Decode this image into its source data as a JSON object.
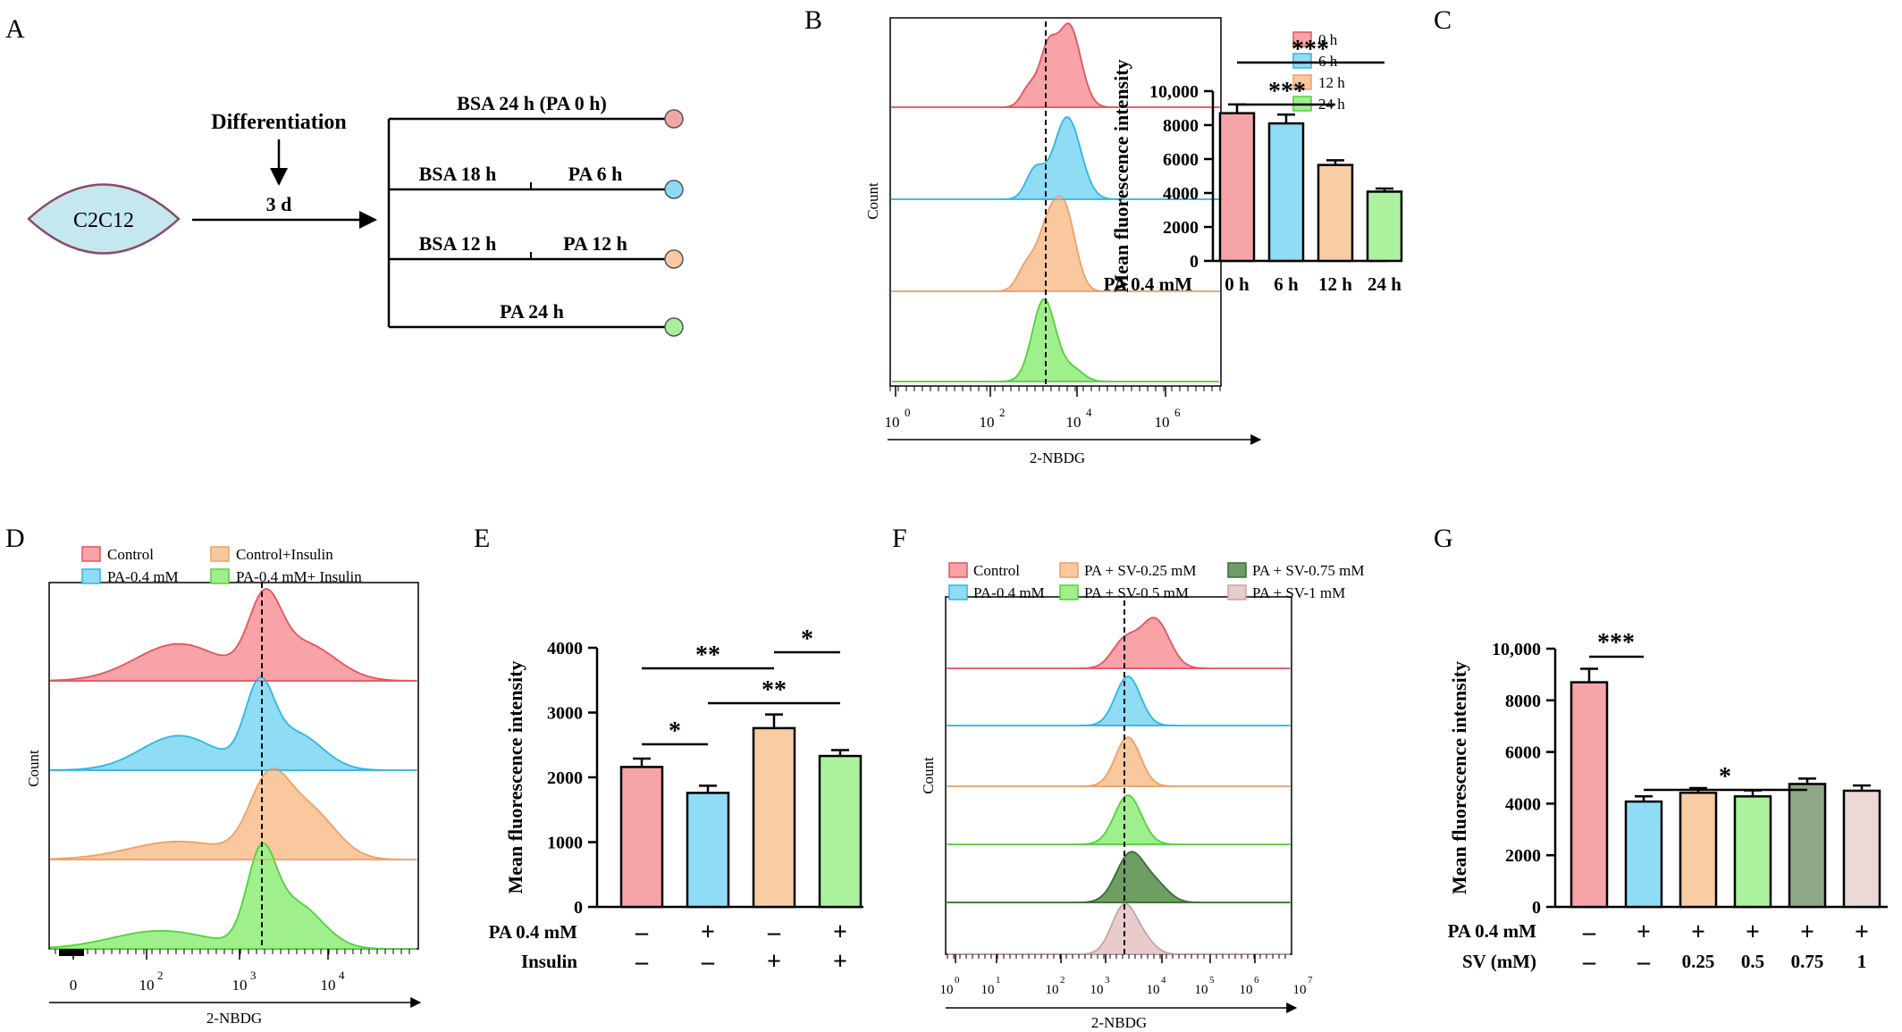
{
  "panels": {
    "A": {
      "letter": "A",
      "cell_label": "C2C12",
      "differentiation_label": "Differentiation",
      "duration_label": "3 d",
      "branches": [
        {
          "labels": [
            "BSA  24 h (PA 0 h)"
          ],
          "color": "#f4a5a8"
        },
        {
          "labels": [
            "BSA  18 h",
            "PA  6 h"
          ],
          "color": "#8ed9f5"
        },
        {
          "labels": [
            "BSA  12 h",
            "PA  12 h"
          ],
          "color": "#f9c8a0"
        },
        {
          "labels": [
            "PA  24 h"
          ],
          "color": "#a9ee9a"
        }
      ]
    },
    "B": {
      "letter": "B",
      "xlabel": "2-NBDG",
      "ylabel": "Count",
      "tick_exponents": [
        "0",
        "2",
        "4",
        "6"
      ],
      "legend": [
        "0 h",
        "6 h",
        "12 h",
        "24 h"
      ],
      "fills": [
        "#f7a3a8",
        "#8fdcf4",
        "#f9c89e",
        "#9ff08d"
      ],
      "strokes": [
        "#e3545e",
        "#2eb6e6",
        "#eea066",
        "#54cf3c"
      ]
    },
    "C": {
      "letter": "C",
      "row_label": "PA 0.4 mM",
      "significance": [
        "***",
        "***"
      ]
    },
    "D": {
      "letter": "D",
      "xlabel": "2-NBDG",
      "ylabel": "Count",
      "tick_labels": [
        "0",
        "10",
        "10",
        "10"
      ],
      "tick_exponents": [
        "",
        "2",
        "3",
        "4"
      ],
      "legend": [
        "Control",
        "Control+Insulin",
        "PA-0.4 mM",
        "PA-0.4 mM+ Insulin"
      ]
    },
    "E": {
      "letter": "E",
      "row_labels": [
        "PA 0.4 mM",
        "Insulin"
      ],
      "pa_signs": [
        "–",
        "+",
        "–",
        "+"
      ],
      "insulin_signs": [
        "–",
        "–",
        "+",
        "+"
      ],
      "significance": [
        "**",
        "*",
        "*",
        "**"
      ]
    },
    "F": {
      "letter": "F",
      "xlabel": "2-NBDG",
      "ylabel": "Count",
      "tick_exponents": [
        "0",
        "1",
        "2",
        "3",
        "4",
        "5",
        "6",
        "7"
      ],
      "legend": [
        "Control",
        "PA + SV-0.25 mM",
        "PA + SV-0.75 mM",
        "PA-0.4 mM",
        "PA + SV-0.5 mM",
        "PA + SV-1 mM"
      ]
    },
    "G": {
      "letter": "G",
      "row_labels": [
        "PA 0.4 mM",
        "SV (mM)"
      ],
      "pa_signs": [
        "–",
        "+",
        "+",
        "+",
        "+",
        "+"
      ],
      "sv_values": [
        "–",
        "–",
        "0.25",
        "0.5",
        "0.75",
        "1"
      ],
      "significance": [
        "***",
        "*"
      ]
    }
  },
  "chart_data": [
    {
      "panel": "C",
      "type": "bar",
      "categories": [
        "0 h",
        "6 h",
        "12 h",
        "24 h"
      ],
      "values": [
        8700,
        8100,
        5650,
        4080
      ],
      "errors": [
        520,
        520,
        280,
        180
      ],
      "colors": [
        "#f7a4a8",
        "#8fdcf7",
        "#f9cda3",
        "#adf39f"
      ],
      "ylabel": "Mean fluorescence intensity",
      "ylim": [
        0,
        10000
      ],
      "yticks": [
        0,
        2000,
        4000,
        6000,
        8000,
        10000
      ],
      "ytick_labels": [
        "0",
        "2000",
        "4000",
        "6000",
        "8000",
        "10,000"
      ]
    },
    {
      "panel": "E",
      "type": "bar",
      "categories": [
        "1",
        "2",
        "3",
        "4"
      ],
      "values": [
        2160,
        1760,
        2760,
        2330
      ],
      "errors": [
        130,
        110,
        210,
        90
      ],
      "colors": [
        "#f7a4a8",
        "#8fdcf7",
        "#f9cda3",
        "#adf39f"
      ],
      "ylabel": "Mean fluorescence intensity",
      "ylim": [
        0,
        4000
      ],
      "yticks": [
        0,
        1000,
        2000,
        3000,
        4000
      ],
      "ytick_labels": [
        "0",
        "1000",
        "2000",
        "3000",
        "4000"
      ]
    },
    {
      "panel": "G",
      "type": "bar",
      "categories": [
        "1",
        "2",
        "3",
        "4",
        "5",
        "6"
      ],
      "values": [
        8700,
        4080,
        4420,
        4280,
        4760,
        4500
      ],
      "errors": [
        520,
        200,
        180,
        230,
        210,
        200
      ],
      "colors": [
        "#f7a4a8",
        "#8fdcf7",
        "#f9cda3",
        "#adf39f",
        "#8fa886",
        "#ead9d6"
      ],
      "ylabel": "Mean fluorescence intensity",
      "ylim": [
        0,
        10000
      ],
      "yticks": [
        0,
        2000,
        4000,
        6000,
        8000,
        10000
      ],
      "ytick_labels": [
        "0",
        "2000",
        "4000",
        "6000",
        "8000",
        "10,000"
      ]
    }
  ]
}
